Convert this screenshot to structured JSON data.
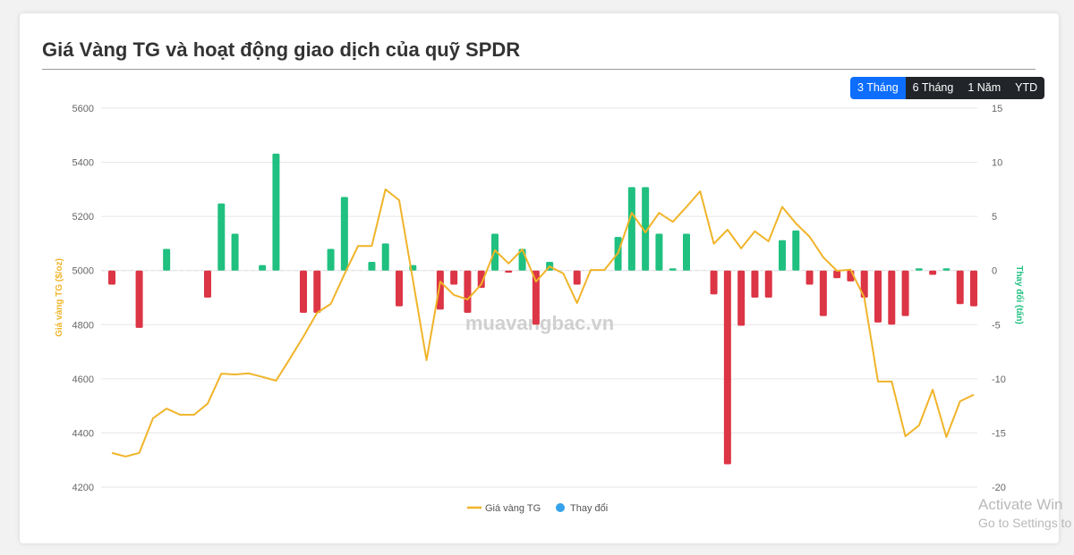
{
  "title": "Giá Vàng TG và hoạt động giao dịch của quỹ SPDR",
  "range_buttons": [
    {
      "label": "3 Tháng",
      "active": true
    },
    {
      "label": "6 Tháng",
      "active": false
    },
    {
      "label": "1 Năm",
      "active": false
    },
    {
      "label": "YTD",
      "active": false
    }
  ],
  "watermark": "muavangbac.vn",
  "os_watermark": {
    "line1": "Activate Win",
    "line2": "Go to Settings to"
  },
  "colors": {
    "line": "#f0b429",
    "positive": "#20c080",
    "negative": "#dc3545",
    "legend_change": "#36a2eb"
  },
  "chart_data": {
    "type": "bar+line",
    "title": "",
    "y_left": {
      "label": "Giá vàng TG ($/oz)",
      "lim": [
        4200,
        5600
      ],
      "ticks": [
        4200,
        4400,
        4600,
        4800,
        5000,
        5200,
        5400,
        5600
      ]
    },
    "y_right": {
      "label": "Thay đổi (tấn)",
      "lim": [
        -20,
        15
      ],
      "ticks": [
        -20,
        -15,
        -10,
        -5,
        0,
        5,
        10,
        15
      ]
    },
    "grid": true,
    "legend_position": "bottom",
    "series": [
      {
        "name": "Giá vàng TG",
        "type": "line",
        "axis": "left",
        "values": [
          4326,
          4313,
          4326,
          4454,
          4490,
          4467,
          4467,
          4508,
          4619,
          4616,
          4620,
          4607,
          4593,
          4673,
          4756,
          4844,
          4877,
          4987,
          5091,
          5091,
          5300,
          5260,
          4966,
          4669,
          4959,
          4910,
          4893,
          4949,
          5075,
          5026,
          5078,
          4959,
          5015,
          4989,
          4880,
          5002,
          5002,
          5065,
          5213,
          5141,
          5213,
          5180,
          5235,
          5293,
          5099,
          5151,
          5082,
          5145,
          5108,
          5235,
          5174,
          5125,
          5049,
          4999,
          5003,
          4900,
          4590,
          4590,
          4388,
          4428,
          4560,
          4385,
          4517,
          4541
        ]
      },
      {
        "name": "Thay đổi",
        "type": "bar",
        "axis": "right",
        "values": [
          -1.3,
          0,
          -5.3,
          0,
          2.0,
          0,
          0,
          -2.5,
          6.2,
          3.4,
          0,
          0.5,
          10.8,
          0,
          -3.9,
          -3.9,
          2.0,
          6.8,
          0,
          0.8,
          2.5,
          -3.3,
          0.5,
          0,
          -3.6,
          -1.3,
          -3.9,
          -1.6,
          3.4,
          -0.2,
          2.0,
          -5.0,
          0.8,
          0,
          -1.3,
          0,
          0,
          3.1,
          7.7,
          7.7,
          3.4,
          0.2,
          3.4,
          0,
          -2.2,
          -17.9,
          -5.1,
          -2.5,
          -2.5,
          2.8,
          3.7,
          -1.3,
          -4.2,
          -0.7,
          -1.0,
          -2.5,
          -4.8,
          -5.0,
          -4.2,
          0.2,
          -0.4,
          0.2,
          -3.1,
          -3.3
        ]
      }
    ]
  }
}
